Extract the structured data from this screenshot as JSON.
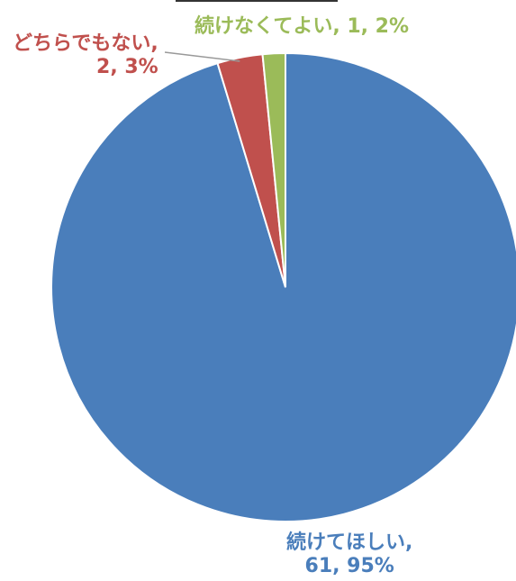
{
  "chart_data": {
    "type": "pie",
    "title": "",
    "legend": "none",
    "slices": [
      {
        "name": "続けてほしい",
        "value": 61,
        "percent": "95%",
        "color": "#4a7ebb",
        "label_line1": "続けてほしい,",
        "label_line2": "61, 95%"
      },
      {
        "name": "どちらでもない",
        "value": 2,
        "percent": "3%",
        "color": "#c0504d",
        "label_line1": "どちらでもない,",
        "label_line2": "2, 3%"
      },
      {
        "name": "続けなくてよい",
        "value": 1,
        "percent": "2%",
        "color": "#9bbb59",
        "label_line1": "続けなくてよい, 1, 2%",
        "label_line2": ""
      }
    ]
  }
}
